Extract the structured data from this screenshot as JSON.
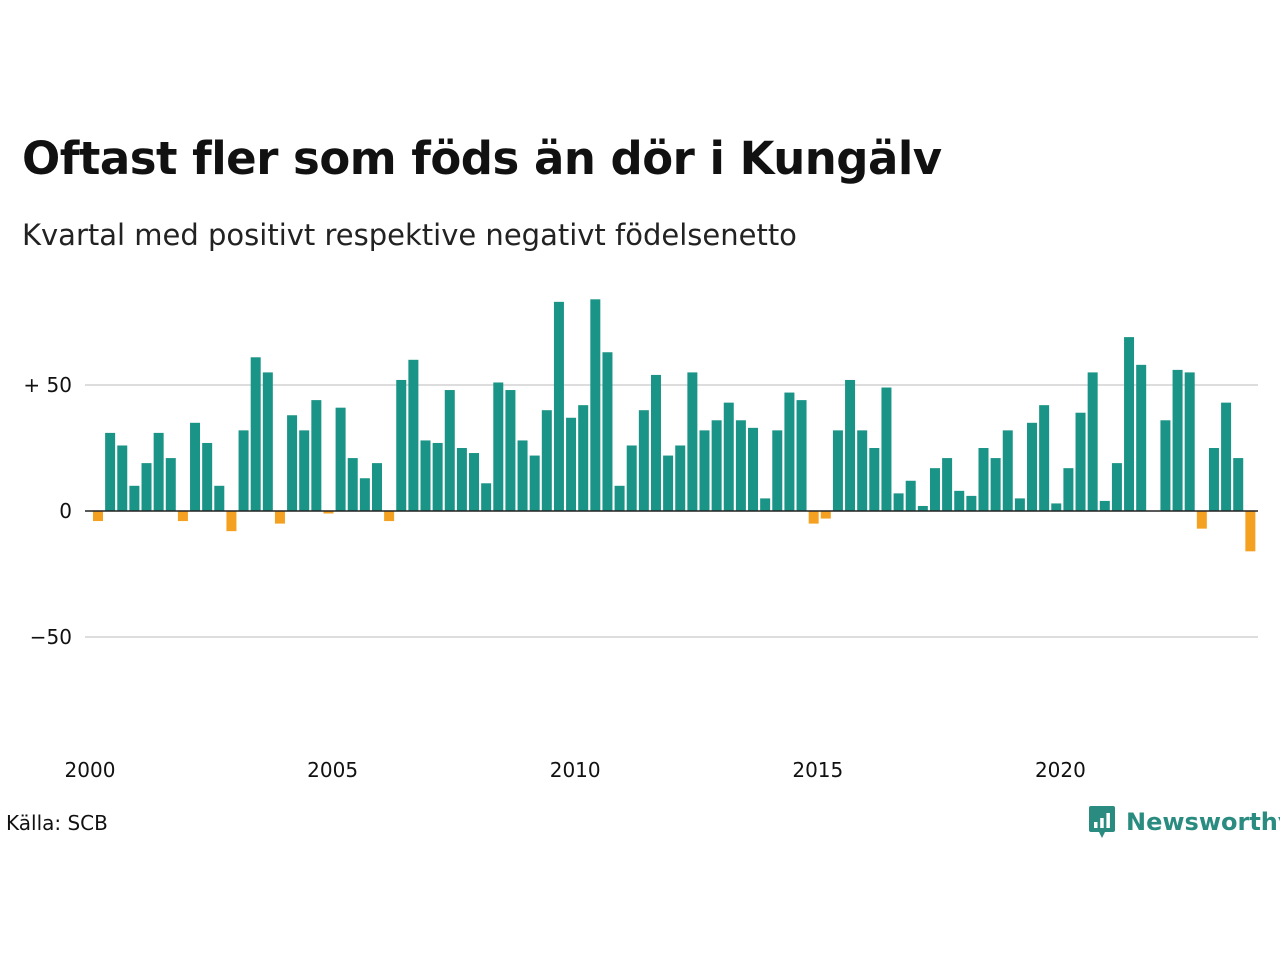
{
  "chart_data": {
    "type": "bar",
    "title": "Oftast fler som föds än dör i Kungälv",
    "subtitle": "Kvartal med positivt respektive negativt födelsenetto",
    "x_start": 2000,
    "x_ticks": [
      "2000",
      "2005",
      "2010",
      "2015",
      "2020"
    ],
    "y_ticks": [
      {
        "value": 50,
        "label": "+ 50"
      },
      {
        "value": 0,
        "label": "0"
      },
      {
        "value": -50,
        "label": "−50"
      }
    ],
    "ylim": [
      -90,
      85
    ],
    "grid": true,
    "colors": {
      "positive": "#1a9486",
      "negative": "#f4a020"
    },
    "values": [
      -4,
      31,
      26,
      10,
      19,
      31,
      21,
      -4,
      35,
      27,
      10,
      -8,
      32,
      61,
      55,
      -5,
      38,
      32,
      44,
      -1,
      41,
      21,
      13,
      19,
      -4,
      52,
      60,
      28,
      27,
      48,
      25,
      23,
      11,
      51,
      48,
      28,
      22,
      40,
      83,
      37,
      42,
      84,
      63,
      10,
      26,
      40,
      54,
      22,
      26,
      55,
      32,
      36,
      43,
      36,
      33,
      5,
      32,
      47,
      44,
      -5,
      -3,
      32,
      52,
      32,
      25,
      49,
      7,
      12,
      2,
      17,
      21,
      8,
      6,
      25,
      21,
      32,
      5,
      35,
      42,
      3,
      17,
      39,
      55,
      4,
      19,
      69,
      58,
      0,
      36,
      56,
      55,
      -7,
      25,
      43,
      21,
      -16
    ]
  },
  "source": "Källa: SCB",
  "brand": {
    "name": "Newsworthy",
    "icon": "newsworthy-logo-icon",
    "color": "#2a8c80"
  }
}
